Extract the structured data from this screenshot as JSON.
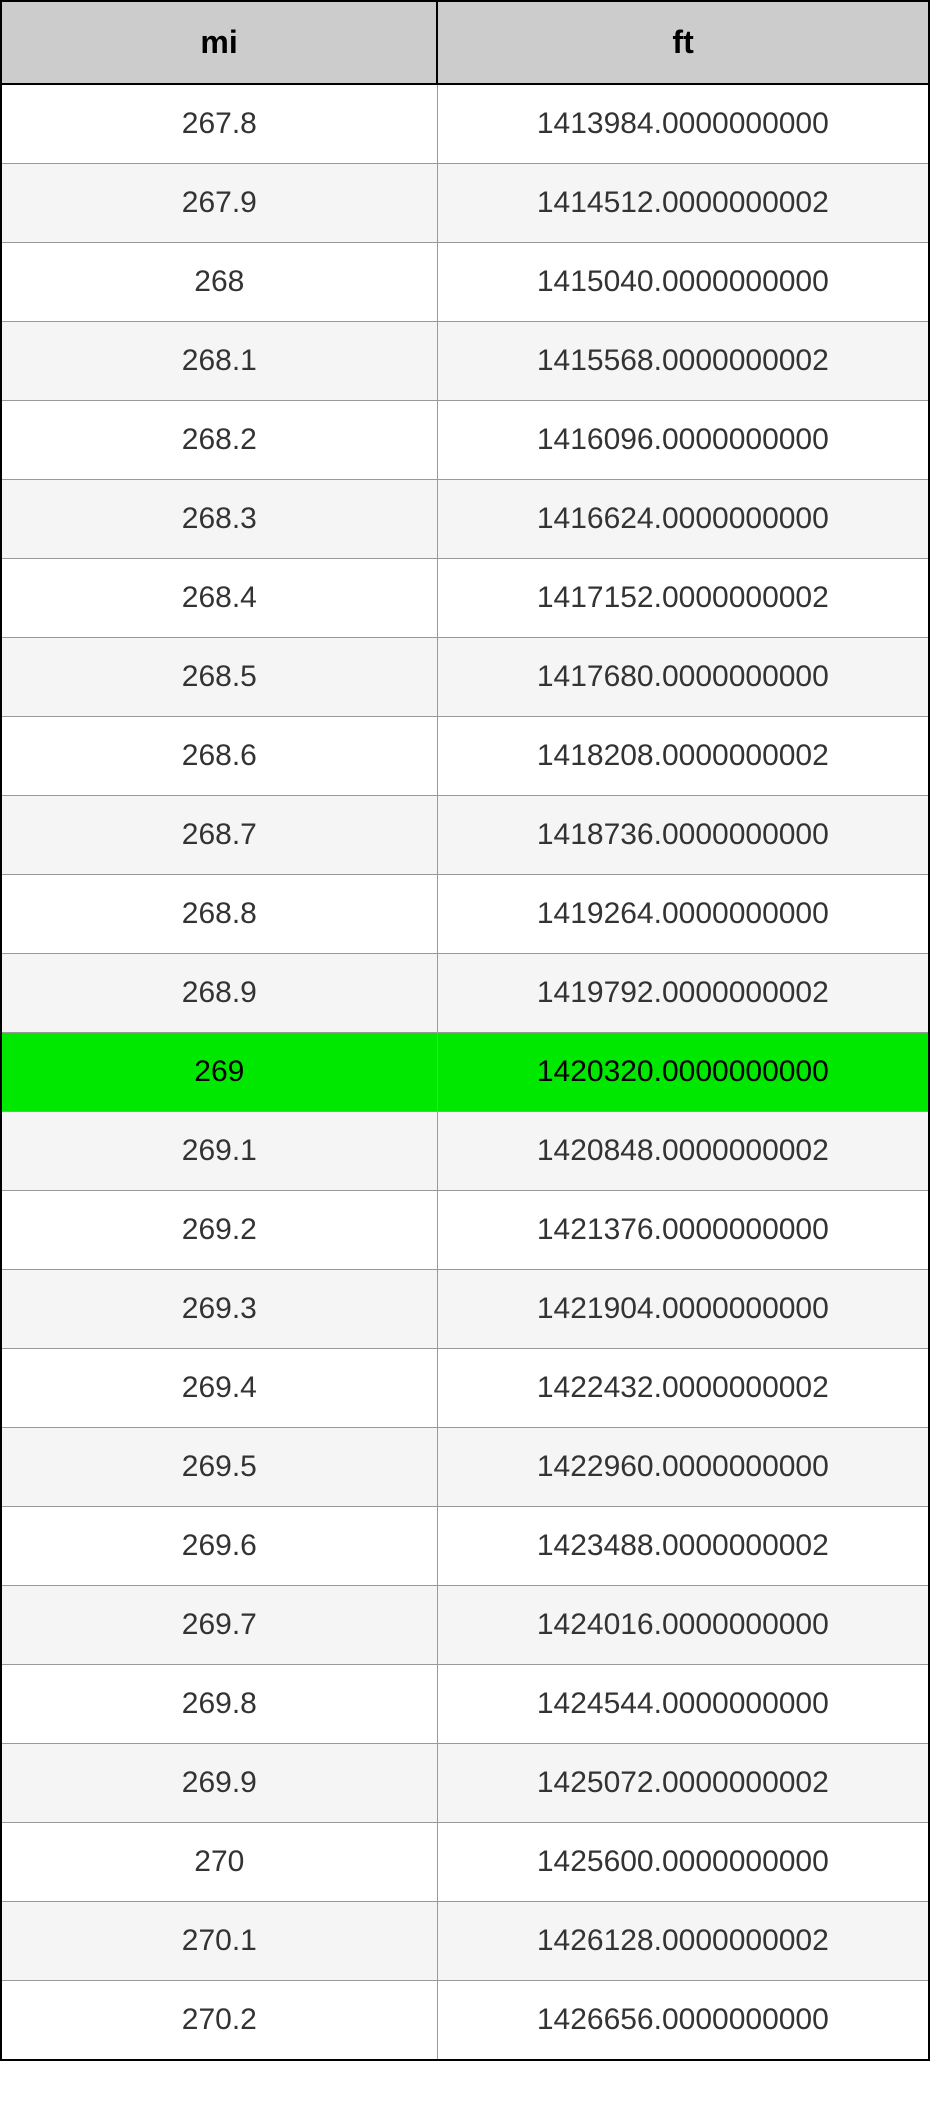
{
  "table": {
    "columns": [
      {
        "label": "mi"
      },
      {
        "label": "ft"
      }
    ],
    "header_bg": "#cccccc",
    "highlight_bg": "#00e800",
    "alt_row_bg": "#f5f5f5",
    "border_color": "#000000",
    "cell_border_color": "#999999",
    "header_fontsize": 32,
    "cell_fontsize": 30,
    "highlight_row_index": 12,
    "rows": [
      {
        "mi": "267.8",
        "ft": "1413984.0000000000"
      },
      {
        "mi": "267.9",
        "ft": "1414512.0000000002"
      },
      {
        "mi": "268",
        "ft": "1415040.0000000000"
      },
      {
        "mi": "268.1",
        "ft": "1415568.0000000002"
      },
      {
        "mi": "268.2",
        "ft": "1416096.0000000000"
      },
      {
        "mi": "268.3",
        "ft": "1416624.0000000000"
      },
      {
        "mi": "268.4",
        "ft": "1417152.0000000002"
      },
      {
        "mi": "268.5",
        "ft": "1417680.0000000000"
      },
      {
        "mi": "268.6",
        "ft": "1418208.0000000002"
      },
      {
        "mi": "268.7",
        "ft": "1418736.0000000000"
      },
      {
        "mi": "268.8",
        "ft": "1419264.0000000000"
      },
      {
        "mi": "268.9",
        "ft": "1419792.0000000002"
      },
      {
        "mi": "269",
        "ft": "1420320.0000000000"
      },
      {
        "mi": "269.1",
        "ft": "1420848.0000000002"
      },
      {
        "mi": "269.2",
        "ft": "1421376.0000000000"
      },
      {
        "mi": "269.3",
        "ft": "1421904.0000000000"
      },
      {
        "mi": "269.4",
        "ft": "1422432.0000000002"
      },
      {
        "mi": "269.5",
        "ft": "1422960.0000000000"
      },
      {
        "mi": "269.6",
        "ft": "1423488.0000000002"
      },
      {
        "mi": "269.7",
        "ft": "1424016.0000000000"
      },
      {
        "mi": "269.8",
        "ft": "1424544.0000000000"
      },
      {
        "mi": "269.9",
        "ft": "1425072.0000000002"
      },
      {
        "mi": "270",
        "ft": "1425600.0000000000"
      },
      {
        "mi": "270.1",
        "ft": "1426128.0000000002"
      },
      {
        "mi": "270.2",
        "ft": "1426656.0000000000"
      }
    ]
  }
}
